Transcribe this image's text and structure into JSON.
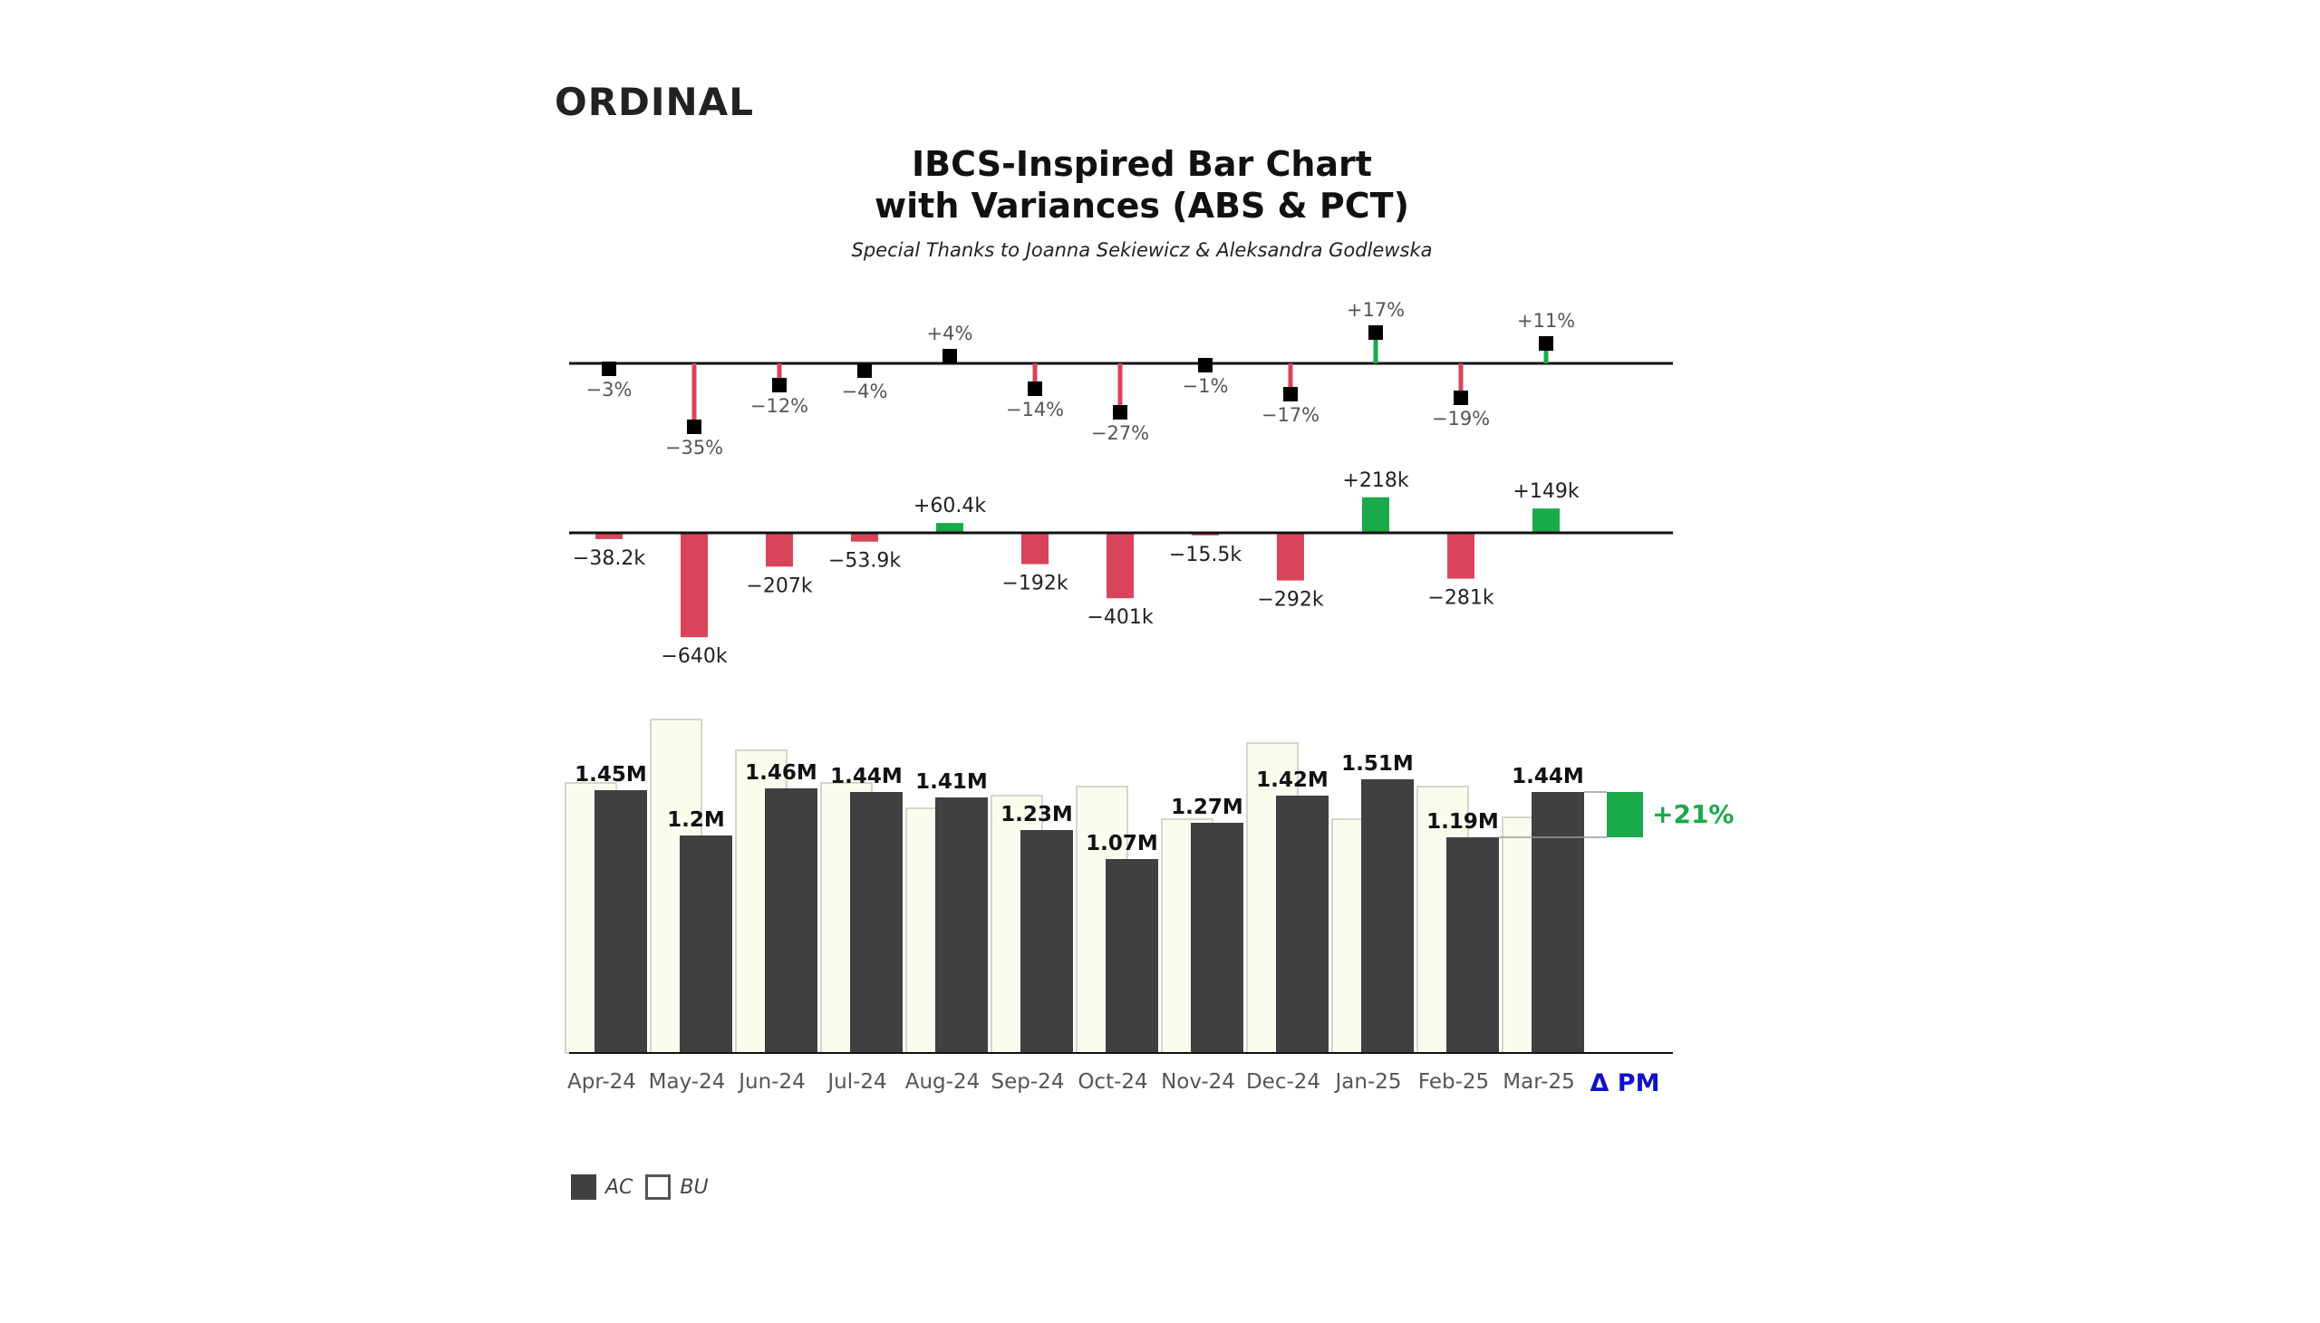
{
  "brand": "ORDINAL",
  "chart_data": {
    "type": "bar",
    "title_line1": "IBCS-Inspired Bar Chart",
    "title_line2": "with Variances (ABS & PCT)",
    "subtitle": "Special Thanks to Joanna Sekiewicz & Aleksandra Godlewska",
    "categories": [
      "Apr-24",
      "May-24",
      "Jun-24",
      "Jul-24",
      "Aug-24",
      "Sep-24",
      "Oct-24",
      "Nov-24",
      "Dec-24",
      "Jan-25",
      "Feb-25",
      "Mar-25"
    ],
    "series": [
      {
        "name": "AC",
        "values": [
          1.45,
          1.2,
          1.46,
          1.44,
          1.41,
          1.23,
          1.07,
          1.27,
          1.42,
          1.51,
          1.19,
          1.44
        ],
        "labels": [
          "1.45M",
          "1.2M",
          "1.46M",
          "1.44M",
          "1.41M",
          "1.23M",
          "1.07M",
          "1.27M",
          "1.42M",
          "1.51M",
          "1.19M",
          "1.44M"
        ]
      },
      {
        "name": "BU",
        "values": [
          1.49,
          1.84,
          1.67,
          1.49,
          1.35,
          1.42,
          1.47,
          1.29,
          1.71,
          1.29,
          1.47,
          1.3
        ]
      }
    ],
    "abs_variance": {
      "values": [
        -38.2,
        -640,
        -207,
        -53.9,
        60.4,
        -192,
        -401,
        -15.5,
        -292,
        218,
        -281,
        149
      ],
      "labels": [
        "−38.2k",
        "−640k",
        "−207k",
        "−53.9k",
        "+60.4k",
        "−192k",
        "−401k",
        "−15.5k",
        "−292k",
        "+218k",
        "−281k",
        "+149k"
      ]
    },
    "pct_variance": {
      "values": [
        -3,
        -35,
        -12,
        -4,
        4,
        -14,
        -27,
        -1,
        -17,
        17,
        -19,
        11
      ],
      "labels": [
        "−3%",
        "−35%",
        "−12%",
        "−4%",
        "+4%",
        "−14%",
        "−27%",
        "−1%",
        "−17%",
        "+17%",
        "−19%",
        "+11%"
      ]
    },
    "pm_delta": {
      "label": "Δ PM",
      "from": 1.19,
      "to": 1.44,
      "value_label": "+21%"
    },
    "legend": [
      {
        "name": "AC",
        "color": "#404040"
      },
      {
        "name": "BU",
        "color": "#ffffff"
      }
    ],
    "colors": {
      "positive": "#1aaa4a",
      "negative": "#d9445a",
      "ac": "#404040",
      "bu_fill": "#fcfcee",
      "pm_label": "#1010cc"
    }
  }
}
